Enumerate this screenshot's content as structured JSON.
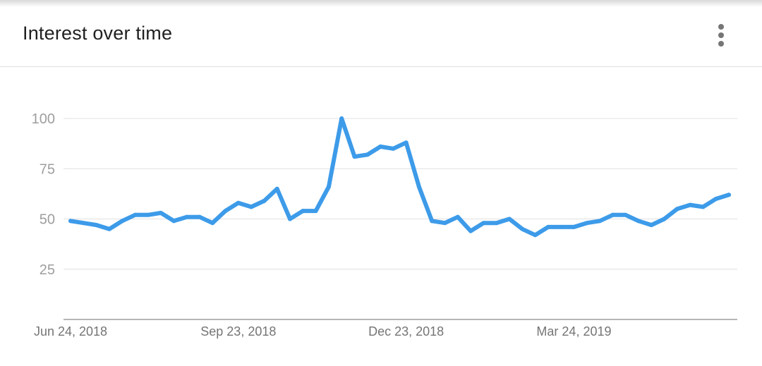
{
  "header": {
    "title": "Interest over time",
    "menu_icon": "more-vert-icon"
  },
  "colors": {
    "line": "#3d9be9",
    "grid": "#e0e0e0",
    "axis": "#9e9e9e"
  },
  "chart_data": {
    "type": "line",
    "title": "Interest over time",
    "xlabel": "",
    "ylabel": "",
    "ylim": [
      0,
      100
    ],
    "yticks": [
      25,
      50,
      75,
      100
    ],
    "grid": true,
    "xtick_labels": [
      "Jun 24, 2018",
      "Sep 23, 2018",
      "Dec 23, 2018",
      "Mar 24, 2019"
    ],
    "xtick_indices": [
      0,
      13,
      26,
      39
    ],
    "series": [
      {
        "values": [
          49,
          48,
          47,
          45,
          49,
          52,
          52,
          53,
          49,
          51,
          51,
          48,
          54,
          58,
          56,
          59,
          65,
          50,
          54,
          54,
          66,
          100,
          81,
          82,
          86,
          85,
          88,
          66,
          49,
          48,
          51,
          44,
          48,
          48,
          50,
          45,
          42,
          46,
          46,
          46,
          48,
          49,
          52,
          52,
          49,
          47,
          50,
          55,
          57,
          56,
          60,
          62
        ]
      }
    ]
  }
}
